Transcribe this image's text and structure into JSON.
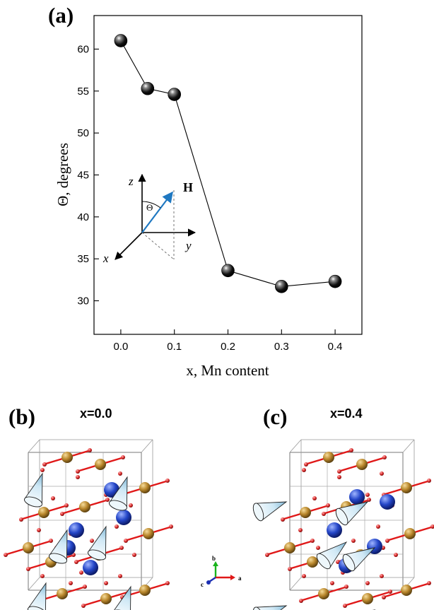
{
  "panels": {
    "a": {
      "label": "(a)"
    },
    "b": {
      "label": "(b)",
      "title": "x=0.0"
    },
    "c": {
      "label": "(c)",
      "title": "x=0.4"
    }
  },
  "inset": {
    "z_label": "z",
    "y_label": "y",
    "x_label": "x",
    "vector_label": "H",
    "angle_label": "Θ",
    "vector_color": "#1f78c1"
  },
  "axes_legend": {
    "a": "a",
    "b": "b",
    "c": "c"
  },
  "colors": {
    "marker": "#111111",
    "mn_site": "#b8862b",
    "rare_earth_site": "#2446c8",
    "oxygen": "#d92b2b",
    "spin_bond": "#e01818",
    "cone": "#cfe8f5"
  },
  "chart_data": {
    "type": "line",
    "title": "",
    "xlabel": "x, Mn content",
    "ylabel": "Θ, degrees",
    "x": [
      0.0,
      0.05,
      0.1,
      0.2,
      0.3,
      0.4
    ],
    "series": [
      {
        "values": [
          61.0,
          55.3,
          54.6,
          33.6,
          31.7,
          32.3
        ]
      }
    ],
    "xlim": [
      -0.05,
      0.45
    ],
    "ylim": [
      26,
      64
    ],
    "xticks": [
      0.0,
      0.1,
      0.2,
      0.3,
      0.4
    ],
    "xtick_labels": [
      "0.0",
      "0.1",
      "0.2",
      "0.3",
      "0.4"
    ],
    "yticks": [
      30,
      35,
      40,
      45,
      50,
      55,
      60
    ],
    "ytick_labels": [
      "30",
      "35",
      "40",
      "45",
      "50",
      "55",
      "60"
    ],
    "grid": false,
    "marker": "sphere"
  }
}
